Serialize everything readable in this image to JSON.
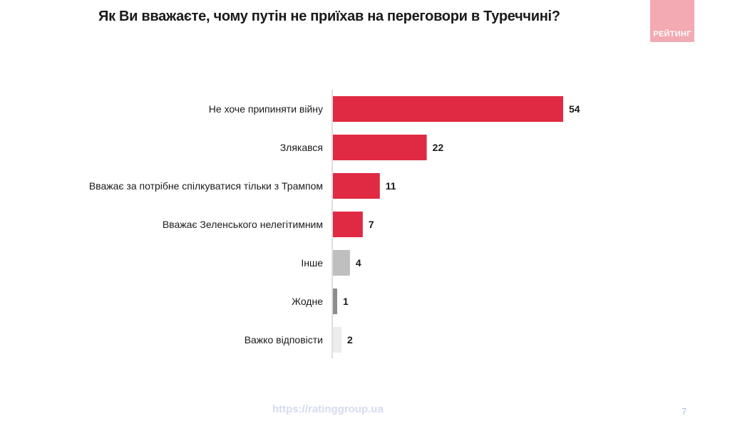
{
  "title": "Як Ви вважаєте, чому путін не приїхав на переговори в Туреччині?",
  "logo": {
    "text": "РЕЙТИНГ",
    "color": "#f3aab2"
  },
  "footer": {
    "url": "https://ratinggroup.ua",
    "page_number": "7"
  },
  "colors": {
    "primary": "#e02a44",
    "other": "#bfbfbf",
    "none": "#8c8c8c",
    "hard_to_say": "#ececec"
  },
  "chart_data": {
    "type": "bar",
    "orientation": "horizontal",
    "title": "Як Ви вважаєте, чому путін не приїхав на переговори в Туреччині?",
    "xlabel": "",
    "ylabel": "",
    "xlim": [
      0,
      54
    ],
    "grid": false,
    "legend": "none",
    "categories": [
      "Не хоче припиняти війну",
      "Злякався",
      "Вважає за потрібне спілкуватися тільки з Трампом",
      "Вважає Зеленського нелегітимним",
      "Інше",
      "Жодне",
      "Важко відповісти"
    ],
    "values": [
      54,
      22,
      11,
      7,
      4,
      1,
      2
    ],
    "value_labels": [
      "54",
      "22",
      "11",
      "7",
      "4",
      "1",
      "2"
    ],
    "bar_colors": [
      "#e02a44",
      "#e02a44",
      "#e02a44",
      "#e02a44",
      "#bfbfbf",
      "#8c8c8c",
      "#ececec"
    ]
  }
}
